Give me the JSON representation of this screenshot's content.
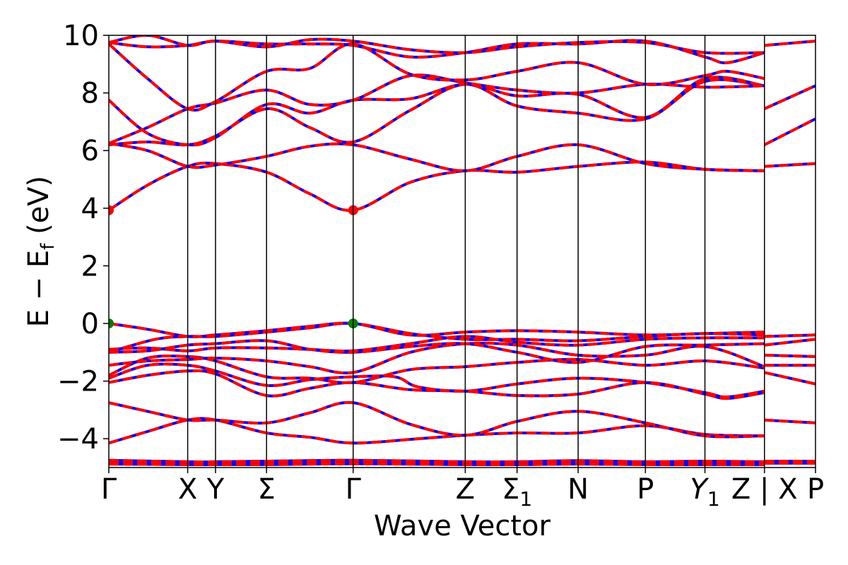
{
  "chart_data": {
    "type": "line",
    "title": "",
    "xlabel": "Wave Vector",
    "ylabel": "E − E_f (eV)",
    "ylabel_parts": {
      "main": "E − E",
      "sub": "f",
      "unit": "(eV)"
    },
    "ylim": [
      -5,
      10
    ],
    "yticks": [
      -4,
      -2,
      0,
      2,
      4,
      6,
      8,
      10
    ],
    "ytick_labels": [
      "−4",
      "−2",
      "0",
      "2",
      "4",
      "6",
      "8",
      "10"
    ],
    "grid": false,
    "legend": "none",
    "colors": {
      "primary": "#ff0000",
      "secondary": "#0000ff",
      "vbm_marker": "#008000",
      "cbm_marker": "#ff0000",
      "axes": "#000000"
    },
    "path_length": 9.14,
    "kpoints": [
      {
        "label": "Γ",
        "x": 0.0
      },
      {
        "label": "X",
        "x": 1.02
      },
      {
        "label": "Y",
        "x": 1.38
      },
      {
        "label": "Σ",
        "x": 2.04
      },
      {
        "label": "Γ",
        "x": 3.16
      },
      {
        "label": "Z",
        "x": 4.61
      },
      {
        "label": "Σ",
        "sub": "1",
        "x": 5.28
      },
      {
        "label": "N",
        "x": 6.07
      },
      {
        "label": "P",
        "x": 6.94
      },
      {
        "label": "Y",
        "sub": "1",
        "italic": true,
        "x": 7.71
      },
      {
        "label": "Z|X",
        "x": 8.48,
        "tick_labels": [
          "Z",
          "|",
          "X"
        ]
      },
      {
        "label": "P",
        "x": 9.14
      }
    ],
    "markers": [
      {
        "type": "cbm",
        "x": 0.0,
        "y": 3.93
      },
      {
        "type": "cbm",
        "x": 3.16,
        "y": 3.93
      },
      {
        "type": "vbm",
        "x": 0.0,
        "y": 0.0
      },
      {
        "type": "vbm",
        "x": 3.16,
        "y": 0.0
      }
    ],
    "bands": [
      [
        [
          0,
          -4.8
        ],
        [
          1.02,
          -4.85
        ],
        [
          1.38,
          -4.85
        ],
        [
          2.04,
          -4.83
        ],
        [
          3.16,
          -4.8
        ],
        [
          4.61,
          -4.85
        ],
        [
          5.28,
          -4.85
        ],
        [
          6.07,
          -4.8
        ],
        [
          6.94,
          -4.85
        ],
        [
          7.71,
          -4.83
        ],
        [
          8.48,
          -4.85
        ]
      ],
      [
        [
          0,
          -4.88
        ],
        [
          1.02,
          -4.9
        ],
        [
          1.38,
          -4.9
        ],
        [
          2.04,
          -4.9
        ],
        [
          3.16,
          -4.87
        ],
        [
          4.61,
          -4.9
        ],
        [
          5.28,
          -4.9
        ],
        [
          6.07,
          -4.88
        ],
        [
          6.94,
          -4.9
        ],
        [
          7.71,
          -4.9
        ],
        [
          8.48,
          -4.9
        ]
      ],
      [
        [
          0,
          -4.75
        ],
        [
          1.02,
          -4.8
        ],
        [
          1.38,
          -4.8
        ],
        [
          2.04,
          -4.78
        ],
        [
          3.16,
          -4.75
        ],
        [
          4.61,
          -4.8
        ],
        [
          5.28,
          -4.8
        ],
        [
          6.07,
          -4.76
        ],
        [
          6.94,
          -4.8
        ],
        [
          7.71,
          -4.78
        ],
        [
          8.48,
          -4.8
        ]
      ],
      [
        [
          8.48,
          -4.85
        ],
        [
          9.14,
          -4.85
        ]
      ],
      [
        [
          8.48,
          -4.78
        ],
        [
          9.14,
          -4.78
        ]
      ],
      [
        [
          0,
          -4.15
        ],
        [
          0.5,
          -3.75
        ],
        [
          1.02,
          -3.35
        ],
        [
          1.38,
          -3.35
        ],
        [
          2.04,
          -3.8
        ],
        [
          2.6,
          -3.95
        ],
        [
          3.16,
          -4.15
        ],
        [
          4.0,
          -4.0
        ],
        [
          4.61,
          -3.88
        ],
        [
          5.28,
          -3.8
        ],
        [
          6.07,
          -3.8
        ],
        [
          6.94,
          -3.55
        ],
        [
          7.71,
          -3.85
        ],
        [
          8.48,
          -3.9
        ]
      ],
      [
        [
          0,
          -2.75
        ],
        [
          0.5,
          -3.05
        ],
        [
          1.02,
          -3.35
        ],
        [
          1.38,
          -3.35
        ],
        [
          2.04,
          -3.45
        ],
        [
          2.6,
          -3.1
        ],
        [
          3.16,
          -2.75
        ],
        [
          3.9,
          -3.5
        ],
        [
          4.61,
          -3.88
        ],
        [
          5.28,
          -3.4
        ],
        [
          6.07,
          -3.05
        ],
        [
          6.94,
          -3.45
        ],
        [
          7.71,
          -3.9
        ],
        [
          8.48,
          -3.9
        ]
      ],
      [
        [
          8.48,
          -3.35
        ],
        [
          9.14,
          -3.45
        ]
      ],
      [
        [
          0,
          -2.05
        ],
        [
          0.5,
          -1.8
        ],
        [
          1.02,
          -1.65
        ],
        [
          1.38,
          -1.75
        ],
        [
          2.04,
          -2.5
        ],
        [
          2.6,
          -2.25
        ],
        [
          3.16,
          -2.05
        ],
        [
          3.9,
          -2.3
        ],
        [
          4.61,
          -2.35
        ],
        [
          5.28,
          -2.5
        ],
        [
          6.07,
          -2.45
        ],
        [
          6.94,
          -2.05
        ],
        [
          7.71,
          -2.45
        ],
        [
          8.0,
          -2.6
        ],
        [
          8.48,
          -2.4
        ]
      ],
      [
        [
          0,
          -1.9
        ],
        [
          0.5,
          -1.45
        ],
        [
          1.02,
          -1.45
        ],
        [
          1.38,
          -1.65
        ],
        [
          2.04,
          -2.15
        ],
        [
          2.6,
          -1.95
        ],
        [
          3.16,
          -1.85
        ],
        [
          3.7,
          -1.85
        ],
        [
          4.0,
          -2.2
        ],
        [
          4.61,
          -2.35
        ],
        [
          5.28,
          -2.1
        ],
        [
          6.07,
          -1.9
        ],
        [
          6.94,
          -2.05
        ],
        [
          7.71,
          -2.4
        ],
        [
          8.0,
          -2.55
        ],
        [
          8.48,
          -2.35
        ]
      ],
      [
        [
          0,
          -1.8
        ],
        [
          0.5,
          -1.2
        ],
        [
          1.02,
          -1.15
        ],
        [
          1.38,
          -1.3
        ],
        [
          2.04,
          -1.85
        ],
        [
          2.6,
          -1.9
        ],
        [
          3.16,
          -2.05
        ],
        [
          3.9,
          -1.6
        ],
        [
          4.61,
          -1.5
        ],
        [
          5.28,
          -1.35
        ],
        [
          6.07,
          -1.25
        ],
        [
          6.94,
          -1.45
        ],
        [
          7.71,
          -1.3
        ],
        [
          8.48,
          -1.55
        ]
      ],
      [
        [
          0,
          -1.45
        ],
        [
          0.5,
          -1.3
        ],
        [
          1.02,
          -1.25
        ],
        [
          1.38,
          -1.2
        ],
        [
          2.04,
          -1.3
        ],
        [
          2.6,
          -1.5
        ],
        [
          3.16,
          -1.7
        ],
        [
          3.9,
          -1.0
        ],
        [
          4.61,
          -0.7
        ],
        [
          5.28,
          -0.75
        ],
        [
          6.07,
          -1.1
        ],
        [
          6.94,
          -1.1
        ],
        [
          7.71,
          -0.8
        ],
        [
          8.48,
          -1.5
        ]
      ],
      [
        [
          0,
          -1.0
        ],
        [
          0.5,
          -0.95
        ],
        [
          1.02,
          -0.75
        ],
        [
          1.38,
          -0.7
        ],
        [
          2.04,
          -0.6
        ],
        [
          2.6,
          -0.9
        ],
        [
          3.16,
          -1.0
        ],
        [
          3.9,
          -0.8
        ],
        [
          4.61,
          -0.7
        ],
        [
          5.28,
          -1.0
        ],
        [
          6.07,
          -1.35
        ],
        [
          6.94,
          -0.8
        ],
        [
          7.71,
          -0.75
        ],
        [
          8.48,
          -0.7
        ]
      ],
      [
        [
          0,
          -1.0
        ],
        [
          0.6,
          -0.55
        ],
        [
          1.02,
          -0.45
        ],
        [
          1.38,
          -0.45
        ],
        [
          2.04,
          -0.3
        ],
        [
          2.6,
          -0.15
        ],
        [
          3.16,
          0.0
        ],
        [
          3.9,
          -0.4
        ],
        [
          4.61,
          -0.3
        ],
        [
          5.28,
          -0.25
        ],
        [
          6.07,
          -0.3
        ],
        [
          6.94,
          -0.4
        ],
        [
          7.71,
          -0.35
        ],
        [
          8.48,
          -0.3
        ]
      ],
      [
        [
          0,
          0.0
        ],
        [
          0.5,
          -0.2
        ],
        [
          1.02,
          -0.45
        ],
        [
          1.38,
          -0.4
        ],
        [
          2.04,
          -0.25
        ],
        [
          2.6,
          -0.1
        ],
        [
          3.16,
          0.0
        ],
        [
          3.9,
          -0.35
        ],
        [
          4.61,
          -0.55
        ],
        [
          5.28,
          -0.55
        ],
        [
          6.07,
          -0.6
        ],
        [
          6.94,
          -0.45
        ],
        [
          7.71,
          -0.35
        ],
        [
          8.48,
          -0.4
        ]
      ],
      [
        [
          0,
          -0.9
        ],
        [
          0.5,
          -0.85
        ],
        [
          1.02,
          -0.95
        ],
        [
          1.38,
          -0.85
        ],
        [
          2.04,
          -0.85
        ],
        [
          2.6,
          -0.9
        ],
        [
          3.16,
          -0.95
        ],
        [
          3.9,
          -0.7
        ],
        [
          4.61,
          -0.45
        ],
        [
          5.28,
          -0.65
        ],
        [
          6.07,
          -0.75
        ],
        [
          6.94,
          -0.55
        ],
        [
          7.71,
          -0.5
        ],
        [
          8.48,
          -0.5
        ]
      ],
      [
        [
          8.48,
          -0.45
        ],
        [
          9.14,
          -0.4
        ]
      ],
      [
        [
          8.48,
          -0.75
        ],
        [
          9.14,
          -0.55
        ]
      ],
      [
        [
          8.48,
          -1.1
        ],
        [
          9.14,
          -1.15
        ]
      ],
      [
        [
          8.48,
          -1.45
        ],
        [
          9.14,
          -1.45
        ]
      ],
      [
        [
          8.48,
          -1.7
        ],
        [
          9.14,
          -2.1
        ]
      ],
      [
        [
          0,
          3.93
        ],
        [
          0.5,
          4.8
        ],
        [
          1.02,
          5.45
        ],
        [
          1.38,
          5.55
        ],
        [
          2.04,
          5.25
        ],
        [
          2.6,
          4.5
        ],
        [
          3.16,
          3.93
        ],
        [
          3.9,
          4.9
        ],
        [
          4.61,
          5.3
        ],
        [
          5.28,
          5.25
        ],
        [
          6.07,
          5.45
        ],
        [
          6.94,
          5.6
        ],
        [
          7.71,
          5.35
        ],
        [
          8.48,
          5.3
        ]
      ],
      [
        [
          0,
          6.25
        ],
        [
          0.5,
          6.0
        ],
        [
          1.02,
          5.45
        ],
        [
          1.38,
          5.5
        ],
        [
          2.04,
          5.8
        ],
        [
          2.6,
          6.15
        ],
        [
          3.16,
          6.2
        ],
        [
          3.9,
          5.7
        ],
        [
          4.61,
          5.3
        ],
        [
          5.28,
          5.8
        ],
        [
          6.07,
          6.2
        ],
        [
          6.94,
          5.55
        ],
        [
          7.71,
          5.35
        ],
        [
          8.48,
          5.3
        ]
      ],
      [
        [
          8.48,
          5.45
        ],
        [
          9.14,
          5.55
        ]
      ],
      [
        [
          0,
          6.2
        ],
        [
          0.5,
          6.3
        ],
        [
          1.02,
          6.2
        ],
        [
          1.38,
          6.5
        ],
        [
          2.04,
          7.45
        ],
        [
          2.6,
          6.8
        ],
        [
          3.16,
          6.3
        ],
        [
          3.9,
          7.4
        ],
        [
          4.61,
          8.3
        ],
        [
          5.28,
          7.55
        ],
        [
          6.07,
          7.3
        ],
        [
          6.94,
          7.1
        ],
        [
          7.71,
          8.4
        ],
        [
          8.48,
          8.25
        ]
      ],
      [
        [
          0,
          7.75
        ],
        [
          0.5,
          6.6
        ],
        [
          1.02,
          6.2
        ],
        [
          1.38,
          6.45
        ],
        [
          2.04,
          7.6
        ],
        [
          2.6,
          7.3
        ],
        [
          3.16,
          7.75
        ],
        [
          3.9,
          7.8
        ],
        [
          4.61,
          8.3
        ],
        [
          5.28,
          7.9
        ],
        [
          6.07,
          7.95
        ],
        [
          6.94,
          7.15
        ],
        [
          7.71,
          8.5
        ],
        [
          8.48,
          8.25
        ]
      ],
      [
        [
          0,
          6.25
        ],
        [
          0.5,
          6.8
        ],
        [
          1.02,
          7.45
        ],
        [
          1.38,
          7.65
        ],
        [
          2.04,
          8.1
        ],
        [
          2.6,
          7.6
        ],
        [
          3.16,
          7.75
        ],
        [
          3.9,
          8.6
        ],
        [
          4.61,
          8.35
        ],
        [
          5.28,
          8.1
        ],
        [
          6.07,
          8.0
        ],
        [
          6.94,
          8.3
        ],
        [
          7.71,
          8.2
        ],
        [
          8.48,
          8.25
        ]
      ],
      [
        [
          0,
          9.7
        ],
        [
          0.5,
          8.5
        ],
        [
          1.02,
          7.45
        ],
        [
          1.38,
          7.7
        ],
        [
          2.04,
          8.75
        ],
        [
          2.6,
          8.85
        ],
        [
          3.16,
          9.7
        ],
        [
          3.9,
          8.65
        ],
        [
          4.61,
          8.45
        ],
        [
          5.28,
          8.75
        ],
        [
          6.07,
          9.05
        ],
        [
          6.94,
          8.3
        ],
        [
          7.71,
          8.6
        ],
        [
          8.0,
          8.75
        ],
        [
          8.48,
          8.5
        ]
      ],
      [
        [
          0,
          9.75
        ],
        [
          0.5,
          9.6
        ],
        [
          1.02,
          9.65
        ],
        [
          1.38,
          9.8
        ],
        [
          2.04,
          9.7
        ],
        [
          2.6,
          9.7
        ],
        [
          3.16,
          9.65
        ],
        [
          3.9,
          9.25
        ],
        [
          4.61,
          9.4
        ],
        [
          5.28,
          9.7
        ],
        [
          6.07,
          9.7
        ],
        [
          6.94,
          9.8
        ],
        [
          7.71,
          9.25
        ],
        [
          8.0,
          9.05
        ],
        [
          8.48,
          9.4
        ]
      ],
      [
        [
          0,
          9.75
        ],
        [
          0.5,
          10.0
        ],
        [
          1.02,
          9.65
        ],
        [
          1.38,
          9.8
        ],
        [
          2.04,
          9.6
        ],
        [
          2.6,
          9.85
        ],
        [
          3.16,
          9.8
        ],
        [
          3.9,
          9.5
        ],
        [
          4.61,
          9.4
        ],
        [
          5.28,
          9.6
        ],
        [
          6.07,
          9.75
        ],
        [
          6.94,
          9.75
        ],
        [
          7.71,
          9.4
        ],
        [
          8.48,
          9.4
        ]
      ],
      [
        [
          8.48,
          6.2
        ],
        [
          9.14,
          7.1
        ]
      ],
      [
        [
          8.48,
          7.45
        ],
        [
          9.14,
          8.25
        ]
      ],
      [
        [
          8.48,
          9.65
        ],
        [
          9.14,
          9.8
        ]
      ]
    ]
  }
}
